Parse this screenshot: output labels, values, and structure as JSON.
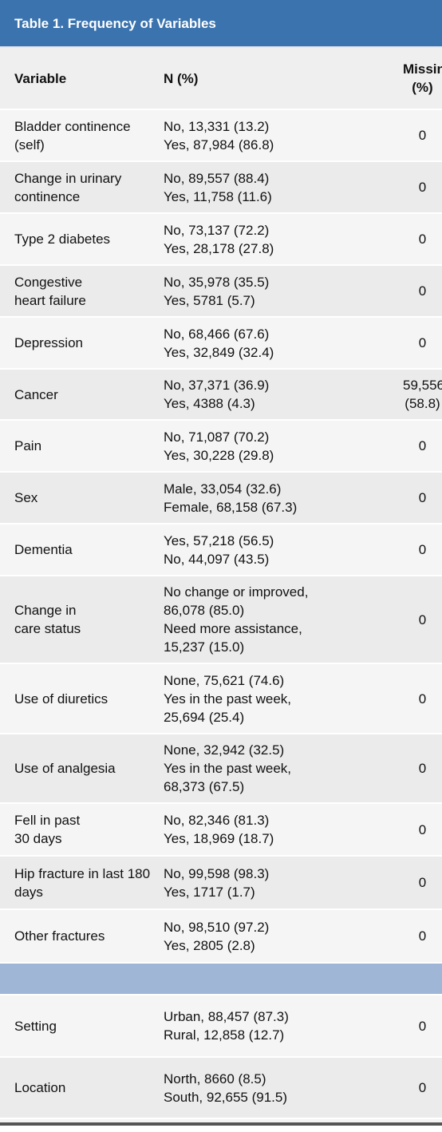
{
  "header": {
    "title": "Table 1. Frequency of Variables"
  },
  "table": {
    "columns": [
      "Variable",
      "N (%)",
      [
        "Missing",
        "(%)"
      ]
    ],
    "sections": [
      {
        "rows": [
          [
            "Bladder continence (self)",
            [
              "No, 13,331 (13.2)",
              "Yes, 87,984 (86.8)"
            ],
            "0"
          ],
          [
            "Change in urinary continence",
            [
              "No, 89,557 (88.4)",
              "Yes, 11,758 (11.6)"
            ],
            "0"
          ],
          [
            "Type 2 diabetes",
            [
              "No, 73,137 (72.2)",
              "Yes, 28,178 (27.8)"
            ],
            "0"
          ],
          [
            [
              "Congestive",
              "heart failure"
            ],
            [
              "No, 35,978 (35.5)",
              "Yes, 5781 (5.7)"
            ],
            "0"
          ],
          [
            "Depression",
            [
              "No, 68,466 (67.6)",
              "Yes, 32,849 (32.4)"
            ],
            "0"
          ],
          [
            "Cancer",
            [
              "No, 37,371 (36.9)",
              "Yes, 4388 (4.3)"
            ],
            [
              "59,556",
              "(58.8)"
            ]
          ],
          [
            "Pain",
            [
              "No, 71,087 (70.2)",
              "Yes, 30,228 (29.8)"
            ],
            "0"
          ],
          [
            "Sex",
            [
              "Male, 33,054 (32.6)",
              "Female, 68,158 (67.3)"
            ],
            "0"
          ],
          [
            "Dementia",
            [
              "Yes, 57,218 (56.5)",
              "No, 44,097 (43.5)"
            ],
            "0"
          ],
          [
            [
              "Change in",
              "care status"
            ],
            [
              "No change or improved,",
              "86,078 (85.0)",
              "Need more assistance,",
              "15,237 (15.0)"
            ],
            "0"
          ],
          [
            "Use of diuretics",
            [
              "None, 75,621 (74.6)",
              "Yes in the past week,",
              "25,694 (25.4)"
            ],
            "0"
          ],
          [
            "Use of analgesia",
            [
              "None, 32,942 (32.5)",
              "Yes in the past week,",
              "68,373 (67.5)"
            ],
            "0"
          ],
          [
            [
              "Fell in past",
              "30 days"
            ],
            [
              "No, 82,346 (81.3)",
              "Yes, 18,969 (18.7)"
            ],
            "0"
          ],
          [
            "Hip fracture in last 180 days",
            [
              "No, 99,598 (98.3)",
              "Yes, 1717 (1.7)"
            ],
            "0"
          ],
          [
            "Other fractures",
            [
              "No, 98,510 (97.2)",
              "Yes, 2805 (2.8)"
            ],
            "0"
          ]
        ]
      },
      {
        "rows": [
          [
            "Setting",
            [
              "Urban, 88,457 (87.3)",
              "Rural, 12,858 (12.7)"
            ],
            "0"
          ],
          [
            "Location",
            [
              "North, 8660 (8.5)",
              "South, 92,655 (91.5)"
            ],
            "0"
          ]
        ]
      }
    ]
  }
}
